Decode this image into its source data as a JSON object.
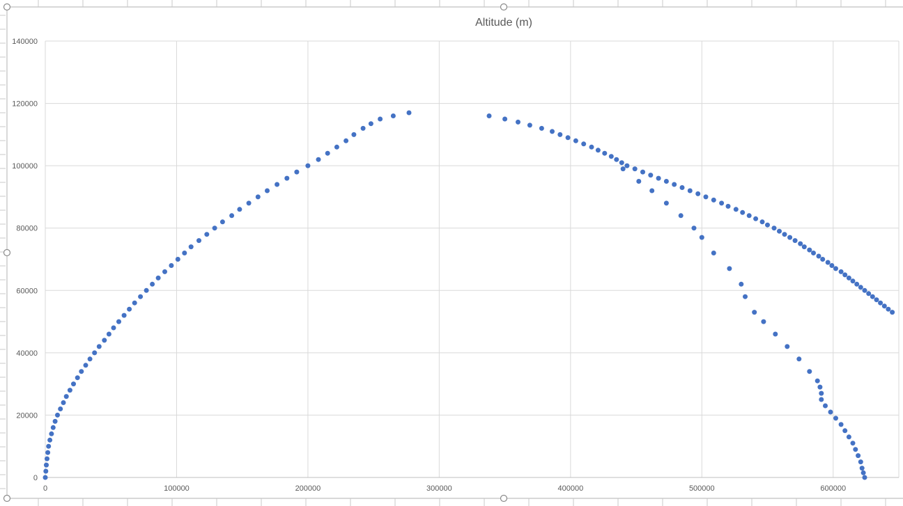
{
  "chart_data": {
    "type": "scatter",
    "title": "Altitude (m)",
    "xlabel": "",
    "ylabel": "",
    "xlim": [
      0,
      650000
    ],
    "ylim": [
      0,
      140000
    ],
    "x_ticks": [
      0,
      100000,
      200000,
      300000,
      400000,
      500000,
      600000
    ],
    "y_ticks": [
      0,
      20000,
      40000,
      60000,
      80000,
      100000,
      120000,
      140000
    ],
    "x_tick_labels": [
      "0",
      "100000",
      "200000",
      "300000",
      "400000",
      "500000",
      "600000"
    ],
    "y_tick_labels": [
      "0",
      "20000",
      "40000",
      "60000",
      "80000",
      "100000",
      "120000",
      "140000"
    ],
    "grid": true,
    "legend": "none",
    "marker_color": "#4472c4",
    "series": [
      {
        "points": [
          [
            0,
            0
          ],
          [
            400,
            2000
          ],
          [
            800,
            4000
          ],
          [
            1300,
            6000
          ],
          [
            1900,
            8000
          ],
          [
            2500,
            10000
          ],
          [
            3500,
            12000
          ],
          [
            4700,
            14000
          ],
          [
            6000,
            16000
          ],
          [
            7500,
            18000
          ],
          [
            9300,
            20000
          ],
          [
            11500,
            22000
          ],
          [
            13800,
            24000
          ],
          [
            16000,
            26000
          ],
          [
            18800,
            28000
          ],
          [
            21500,
            30000
          ],
          [
            24500,
            32000
          ],
          [
            27500,
            34000
          ],
          [
            30800,
            36000
          ],
          [
            34000,
            38000
          ],
          [
            37500,
            40000
          ],
          [
            41000,
            42000
          ],
          [
            45000,
            44000
          ],
          [
            48500,
            46000
          ],
          [
            52000,
            48000
          ],
          [
            56000,
            50000
          ],
          [
            60000,
            52000
          ],
          [
            64000,
            54000
          ],
          [
            68000,
            56000
          ],
          [
            72500,
            58000
          ],
          [
            77000,
            60000
          ],
          [
            81500,
            62000
          ],
          [
            86000,
            64000
          ],
          [
            91000,
            66000
          ],
          [
            96000,
            68000
          ],
          [
            101000,
            70000
          ],
          [
            106000,
            72000
          ],
          [
            111000,
            74000
          ],
          [
            117000,
            76000
          ],
          [
            123000,
            78000
          ],
          [
            129000,
            80000
          ],
          [
            135000,
            82000
          ],
          [
            142000,
            84000
          ],
          [
            148000,
            86000
          ],
          [
            155000,
            88000
          ],
          [
            162000,
            90000
          ],
          [
            169000,
            92000
          ],
          [
            176500,
            94000
          ],
          [
            184000,
            96000
          ],
          [
            191500,
            98000
          ],
          [
            200000,
            100000
          ],
          [
            208000,
            102000
          ],
          [
            215000,
            104000
          ],
          [
            222000,
            106000
          ],
          [
            229000,
            108000
          ],
          [
            235000,
            110000
          ],
          [
            242000,
            112000
          ],
          [
            248000,
            113500
          ],
          [
            255000,
            115000
          ],
          [
            265000,
            116000
          ],
          [
            277000,
            117000
          ],
          [
            338000,
            116000
          ],
          [
            350000,
            115000
          ],
          [
            360000,
            114000
          ],
          [
            369000,
            113000
          ],
          [
            378000,
            112000
          ],
          [
            386000,
            111000
          ],
          [
            392000,
            110000
          ],
          [
            398000,
            109000
          ],
          [
            404000,
            108000
          ],
          [
            410000,
            107000
          ],
          [
            416000,
            106000
          ],
          [
            421000,
            105000
          ],
          [
            426000,
            104000
          ],
          [
            431000,
            103000
          ],
          [
            435000,
            102000
          ],
          [
            439000,
            101000
          ],
          [
            443000,
            100000
          ],
          [
            449000,
            99000
          ],
          [
            455000,
            98000
          ],
          [
            461000,
            97000
          ],
          [
            467000,
            96000
          ],
          [
            473000,
            95000
          ],
          [
            479000,
            94000
          ],
          [
            485000,
            93000
          ],
          [
            491000,
            92000
          ],
          [
            497000,
            91000
          ],
          [
            503000,
            90000
          ],
          [
            509000,
            89000
          ],
          [
            515000,
            88000
          ],
          [
            520000,
            87000
          ],
          [
            526000,
            86000
          ],
          [
            531000,
            85000
          ],
          [
            536000,
            84000
          ],
          [
            541000,
            83000
          ],
          [
            546000,
            82000
          ],
          [
            550000,
            81000
          ],
          [
            555000,
            80000
          ],
          [
            559000,
            79000
          ],
          [
            563000,
            78000
          ],
          [
            567000,
            77000
          ],
          [
            571000,
            76000
          ],
          [
            575000,
            75000
          ],
          [
            578000,
            74000
          ],
          [
            582000,
            73000
          ],
          [
            585000,
            72000
          ],
          [
            589000,
            71000
          ],
          [
            592000,
            70000
          ],
          [
            596000,
            69000
          ],
          [
            599000,
            68000
          ],
          [
            602000,
            67000
          ],
          [
            606000,
            66000
          ],
          [
            609000,
            65000
          ],
          [
            612000,
            64000
          ],
          [
            615000,
            63000
          ],
          [
            618000,
            62000
          ],
          [
            621000,
            61000
          ],
          [
            624000,
            60000
          ],
          [
            627000,
            59000
          ],
          [
            630000,
            58000
          ],
          [
            633000,
            57000
          ],
          [
            636000,
            56000
          ],
          [
            639000,
            55000
          ],
          [
            642000,
            54000
          ],
          [
            645000,
            53000
          ],
          [
            540000,
            53000
          ],
          [
            533000,
            58000
          ],
          [
            530000,
            62000
          ],
          [
            521000,
            67000
          ],
          [
            509000,
            72000
          ],
          [
            500000,
            77000
          ],
          [
            494000,
            80000
          ],
          [
            484000,
            84000
          ],
          [
            473000,
            88000
          ],
          [
            462000,
            92000
          ],
          [
            452000,
            95000
          ],
          [
            440000,
            99000
          ],
          [
            547000,
            50000
          ],
          [
            556000,
            46000
          ],
          [
            565000,
            42000
          ],
          [
            574000,
            38000
          ],
          [
            582000,
            34000
          ],
          [
            588000,
            31000
          ],
          [
            590000,
            29000
          ],
          [
            591000,
            27000
          ],
          [
            591000,
            25000
          ],
          [
            594000,
            23000
          ],
          [
            598000,
            21000
          ],
          [
            602000,
            19000
          ],
          [
            606000,
            17000
          ],
          [
            609000,
            15000
          ],
          [
            612000,
            13000
          ],
          [
            615000,
            11000
          ],
          [
            617000,
            9000
          ],
          [
            619000,
            7000
          ],
          [
            621000,
            5000
          ],
          [
            622000,
            3000
          ],
          [
            623000,
            1500
          ],
          [
            624000,
            0
          ]
        ]
      }
    ]
  }
}
